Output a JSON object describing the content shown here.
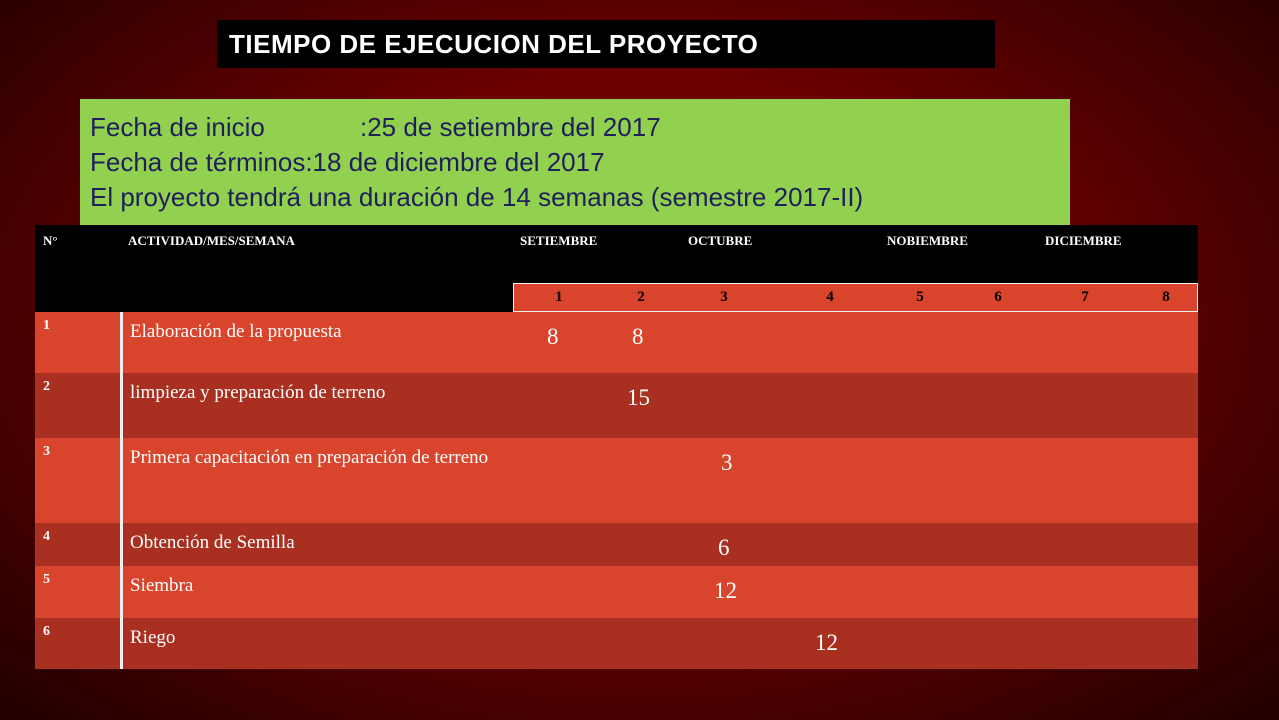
{
  "title": "TIEMPO DE EJECUCION DEL PROYECTO",
  "info": {
    "start_label": "Fecha de inicio",
    "start_value": ":25 de setiembre del 2017",
    "end_label": "Fecha de términos",
    "end_value": ":18 de diciembre del 2017",
    "duration": "El proyecto tendrá una duración de 14 semanas (semestre 2017-II)"
  },
  "table": {
    "header_num": "N°",
    "header_activity": "ACTIVIDAD/MES/SEMANA",
    "months": [
      "SETIEMBRE",
      "OCTUBRE",
      "NOBIEMBRE",
      "DICIEMBRE"
    ],
    "weeks": [
      "1",
      "2",
      "3",
      "4",
      "5",
      "6",
      "7",
      "8"
    ],
    "rows": [
      {
        "num": "1",
        "activity": "Elaboración de la propuesta",
        "values": [
          "8",
          "8"
        ]
      },
      {
        "num": "2",
        "activity": "limpieza y  preparación de terreno",
        "values": [
          "15"
        ]
      },
      {
        "num": "3",
        "activity": "Primera capacitación en preparación de terreno",
        "values": [
          "3"
        ]
      },
      {
        "num": "4",
        "activity": "Obtención de Semilla",
        "values": [
          "6"
        ]
      },
      {
        "num": "5",
        "activity": "Siembra",
        "values": [
          "12"
        ]
      },
      {
        "num": "6",
        "activity": "Riego",
        "values": [
          "12"
        ]
      }
    ]
  },
  "colors": {
    "row_light": "#d9442d",
    "row_dark": "#a93021",
    "info_bg": "#92d050"
  }
}
